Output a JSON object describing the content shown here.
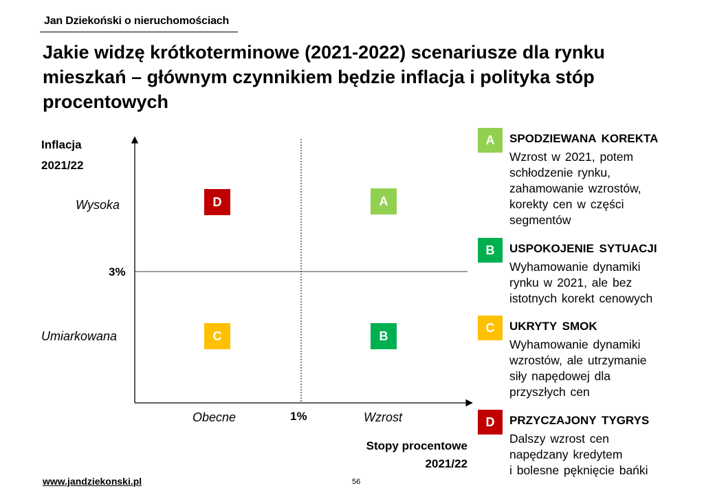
{
  "header": {
    "brand": "Jan Dziekoński o nieruchomościach",
    "title": "Jakie widzę krótkoterminowe (2021-2022) scenariusze dla rynku mieszkań – głównym czynnikiem będzie inflacja i polityka stóp procentowych"
  },
  "matrix": {
    "y_axis_title_line1": "Inflacja",
    "y_axis_title_line2": "2021/22",
    "y_high": "Wysoka",
    "y_threshold": "3%",
    "y_low": "Umiarkowana",
    "x_low": "Obecne",
    "x_threshold": "1%",
    "x_high": "Wzrost",
    "x_axis_title_line1": "Stopy procentowe",
    "x_axis_title_line2": "2021/22",
    "quadrants": [
      {
        "letter": "D",
        "color": "#c00000"
      },
      {
        "letter": "A",
        "color": "#92d050"
      },
      {
        "letter": "C",
        "color": "#ffc000"
      },
      {
        "letter": "B",
        "color": "#00b050"
      }
    ]
  },
  "legend": [
    {
      "letter": "A",
      "color": "#92d050",
      "title": "SPODZIEWANA KOREKTA",
      "description": "Wzrost w 2021, potem\nschłodzenie rynku,\nzahamowanie wzrostów,\nkorekty cen w części\nsegmentów"
    },
    {
      "letter": "B",
      "color": "#00b050",
      "title": "USPOKOJENIE SYTUACJI",
      "description": "Wyhamowanie dynamiki\nrynku w 2021, ale bez\nistotnych korekt cenowych"
    },
    {
      "letter": "C",
      "color": "#ffc000",
      "title": "UKRYTY SMOK",
      "description": "Wyhamowanie dynamiki\nwzrostów, ale utrzymanie\nsiły napędowej dla\nprzyszłych cen"
    },
    {
      "letter": "D",
      "color": "#c00000",
      "title": "PRZYCZAJONY TYGRYS",
      "description": "Dalszy wzrost cen\nnapędzany kredytem\ni bolesne pęknięcie bańki"
    }
  ],
  "footer": {
    "website": "www.jandziekonski.pl",
    "page_number": "56"
  }
}
